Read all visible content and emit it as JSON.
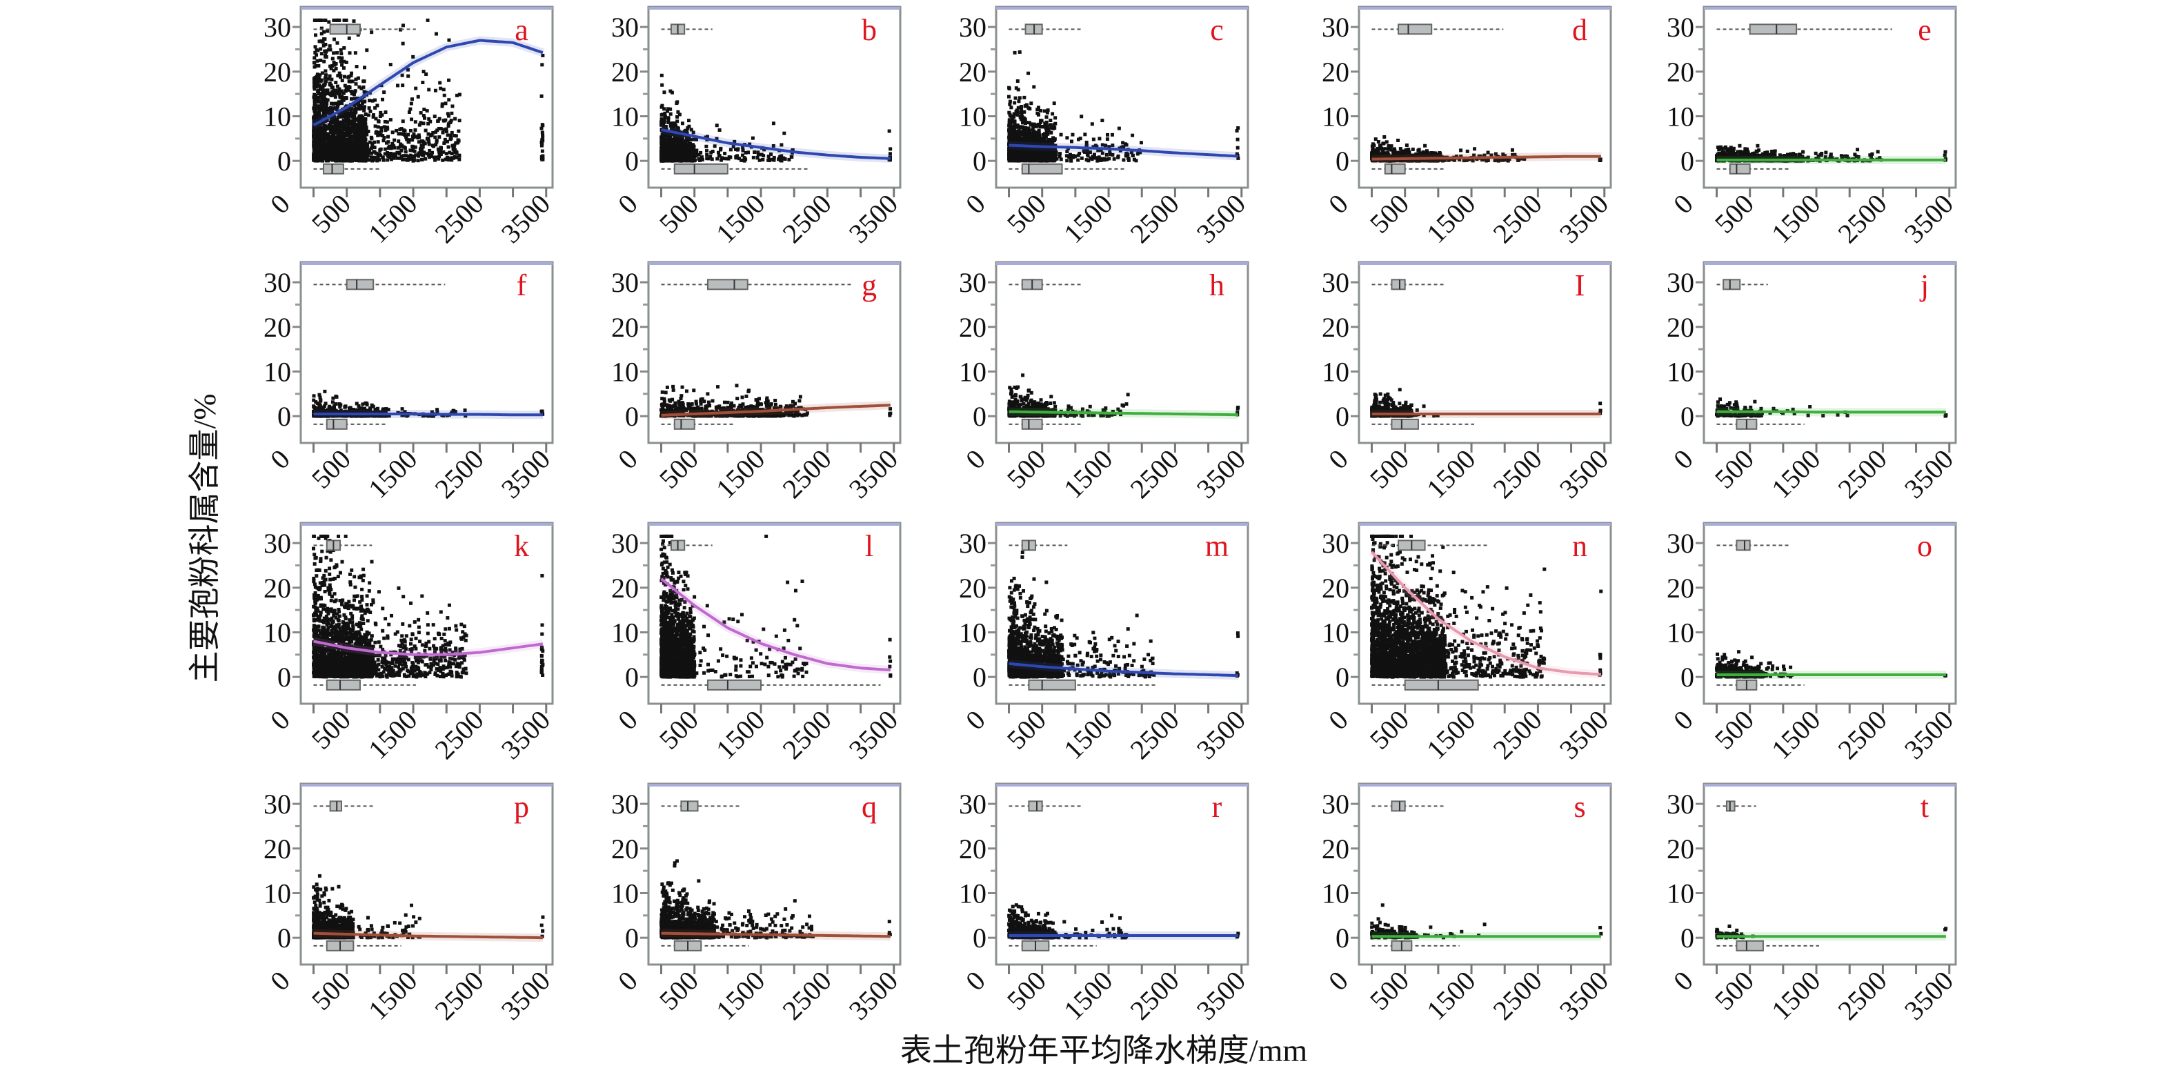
{
  "chart_data": {
    "type": "scatter",
    "xlabel": "表土孢粉年平均降水梯度/mm",
    "ylabel": "主要孢粉科属含量/%",
    "xlim": [
      0,
      3500
    ],
    "ylim": [
      0,
      30
    ],
    "x_ticks": [
      0,
      500,
      1000,
      1500,
      2000,
      2500,
      3000,
      3500
    ],
    "x_tick_labels": [
      "0",
      "500",
      "1500",
      "2500",
      "3500"
    ],
    "x_tick_label_values": [
      0,
      500,
      1500,
      2500,
      3500
    ],
    "y_tick_labels": [
      "0",
      "10",
      "20",
      "30"
    ],
    "y_tick_values": [
      0,
      10,
      20,
      30
    ],
    "y_minor_ticks": [
      5,
      15,
      25
    ],
    "grid": false,
    "label_color": "#e0141e",
    "fit_x": [
      0,
      500,
      1000,
      1500,
      2000,
      2500,
      3000,
      3500
    ],
    "panels": [
      {
        "label": "a",
        "fit_color": "#2f47b0",
        "fit_y": [
          8,
          12,
          17,
          22,
          25.5,
          27,
          26.5,
          24
        ],
        "scatter": {
          "n": 1600,
          "xmax": 800,
          "ymean": 9,
          "tail_n": 500,
          "tail_xmax": 2200,
          "edge_n": 25
        },
        "box_top": [
          250,
          500,
          700
        ],
        "box_bottom": [
          150,
          280,
          450
        ]
      },
      {
        "label": "b",
        "fit_color": "#2f47b0",
        "fit_y": [
          7,
          5.5,
          4,
          3,
          2,
          1.3,
          0.8,
          0.5
        ],
        "scatter": {
          "n": 1000,
          "xmax": 500,
          "ymean": 3,
          "tail_n": 120,
          "tail_xmax": 2000,
          "edge_n": 8
        },
        "box_top": [
          150,
          250,
          350
        ],
        "box_bottom": [
          200,
          500,
          1000
        ]
      },
      {
        "label": "c",
        "fit_color": "#2f47b0",
        "fit_y": [
          3.5,
          3.2,
          3,
          2.7,
          2.3,
          1.8,
          1.4,
          1
        ],
        "scatter": {
          "n": 1300,
          "xmax": 700,
          "ymean": 4,
          "tail_n": 150,
          "tail_xmax": 2000,
          "edge_n": 8
        },
        "box_top": [
          250,
          380,
          500
        ],
        "box_bottom": [
          200,
          300,
          800
        ]
      },
      {
        "label": "d",
        "fit_color": "#a0503a",
        "fit_y": [
          0.4,
          0.5,
          0.6,
          0.7,
          0.8,
          0.9,
          1,
          1
        ],
        "scatter": {
          "n": 500,
          "xmax": 1000,
          "ymean": 1.2,
          "tail_n": 120,
          "tail_xmax": 2300,
          "edge_n": 5
        },
        "box_top": [
          400,
          550,
          900
        ],
        "box_bottom": [
          200,
          300,
          500
        ]
      },
      {
        "label": "e",
        "fit_color": "#3fae3f",
        "fit_y": [
          0.2,
          0.2,
          0.2,
          0.2,
          0.2,
          0.2,
          0.2,
          0.2
        ],
        "scatter": {
          "n": 500,
          "xmax": 1300,
          "ymean": 0.9,
          "tail_n": 100,
          "tail_xmax": 2500,
          "edge_n": 5
        },
        "box_top": [
          500,
          900,
          1200
        ],
        "box_bottom": [
          200,
          300,
          500
        ]
      },
      {
        "label": "f",
        "fit_color": "#2f47b0",
        "fit_y": [
          0.5,
          0.5,
          0.5,
          0.5,
          0.4,
          0.4,
          0.3,
          0.3
        ],
        "scatter": {
          "n": 450,
          "xmax": 1100,
          "ymean": 1,
          "tail_n": 60,
          "tail_xmax": 2300,
          "edge_n": 4
        },
        "box_top": [
          500,
          650,
          900
        ],
        "box_bottom": [
          200,
          300,
          500
        ]
      },
      {
        "label": "g",
        "fit_color": "#a0503a",
        "fit_y": [
          0.2,
          0.5,
          0.8,
          1.1,
          1.5,
          1.9,
          2.2,
          2.5
        ],
        "scatter": {
          "n": 500,
          "xmax": 1800,
          "ymean": 1.5,
          "tail_n": 150,
          "tail_xmax": 2200,
          "edge_n": 4
        },
        "box_top": [
          700,
          1100,
          1300
        ],
        "box_bottom": [
          200,
          300,
          500
        ]
      },
      {
        "label": "h",
        "fit_color": "#3fae3f",
        "fit_y": [
          1,
          0.9,
          0.8,
          0.7,
          0.6,
          0.5,
          0.4,
          0.3
        ],
        "scatter": {
          "n": 450,
          "xmax": 700,
          "ymean": 1.6,
          "tail_n": 80,
          "tail_xmax": 1800,
          "edge_n": 4
        },
        "box_top": [
          200,
          350,
          500
        ],
        "box_bottom": [
          200,
          300,
          500
        ]
      },
      {
        "label": "I",
        "fit_color": "#a0503a",
        "fit_y": [
          0.5,
          0.5,
          0.5,
          0.5,
          0.5,
          0.5,
          0.5,
          0.5
        ],
        "scatter": {
          "n": 400,
          "xmax": 600,
          "ymean": 1.4,
          "tail_n": 20,
          "tail_xmax": 1000,
          "edge_n": 3
        },
        "box_top": [
          300,
          420,
          500
        ],
        "box_bottom": [
          300,
          450,
          700
        ]
      },
      {
        "label": "j",
        "fit_color": "#3fae3f",
        "fit_y": [
          1,
          1,
          1,
          0.9,
          0.9,
          0.9,
          0.9,
          0.9
        ],
        "scatter": {
          "n": 120,
          "xmax": 700,
          "ymean": 1.2,
          "tail_n": 20,
          "tail_xmax": 2000,
          "edge_n": 3
        },
        "box_top": [
          100,
          200,
          350
        ],
        "box_bottom": [
          300,
          450,
          600
        ]
      },
      {
        "label": "k",
        "fit_color": "#c06ad0",
        "fit_y": [
          8,
          6.5,
          5.5,
          5,
          5,
          5.5,
          6.5,
          7.5
        ],
        "scatter": {
          "n": 1500,
          "xmax": 900,
          "ymean": 8,
          "tail_n": 500,
          "tail_xmax": 2300,
          "edge_n": 20
        },
        "box_top": [
          200,
          300,
          400
        ],
        "box_bottom": [
          200,
          400,
          700
        ]
      },
      {
        "label": "l",
        "fit_color": "#c06ad0",
        "fit_y": [
          22,
          16,
          11,
          7.5,
          5,
          3,
          2,
          1.5
        ],
        "scatter": {
          "n": 1500,
          "xmax": 500,
          "ymean": 8,
          "tail_n": 120,
          "tail_xmax": 2200,
          "edge_n": 6
        },
        "box_top": [
          150,
          250,
          350
        ],
        "box_bottom": [
          700,
          1000,
          1500
        ]
      },
      {
        "label": "m",
        "fit_color": "#2f47b0",
        "fit_y": [
          3,
          2.3,
          1.8,
          1.3,
          1,
          0.7,
          0.5,
          0.3
        ],
        "scatter": {
          "n": 1400,
          "xmax": 800,
          "ymean": 5,
          "tail_n": 200,
          "tail_xmax": 2200,
          "edge_n": 5
        },
        "box_top": [
          200,
          300,
          400
        ],
        "box_bottom": [
          300,
          500,
          1000
        ]
      },
      {
        "label": "n",
        "fit_color": "#e89ab0",
        "fit_y": [
          28,
          20,
          13,
          8,
          4.5,
          2,
          1,
          0.5
        ],
        "scatter": {
          "n": 2200,
          "xmax": 1100,
          "ymean": 9,
          "tail_n": 400,
          "tail_xmax": 2600,
          "edge_n": 8
        },
        "box_top": [
          400,
          600,
          800
        ],
        "box_bottom": [
          500,
          1000,
          1600
        ]
      },
      {
        "label": "o",
        "fit_color": "#3fae3f",
        "fit_y": [
          0.5,
          0.5,
          0.5,
          0.5,
          0.5,
          0.5,
          0.5,
          0.5
        ],
        "scatter": {
          "n": 300,
          "xmax": 700,
          "ymean": 1.5,
          "tail_n": 40,
          "tail_xmax": 1200,
          "edge_n": 3
        },
        "box_top": [
          300,
          420,
          500
        ],
        "box_bottom": [
          300,
          450,
          600
        ]
      },
      {
        "label": "p",
        "fit_color": "#a0503a",
        "fit_y": [
          1,
          0.8,
          0.6,
          0.4,
          0.3,
          0.2,
          0.1,
          0
        ],
        "scatter": {
          "n": 900,
          "xmax": 600,
          "ymean": 2.5,
          "tail_n": 80,
          "tail_xmax": 1600,
          "edge_n": 4
        },
        "box_top": [
          250,
          350,
          420
        ],
        "box_bottom": [
          200,
          400,
          600
        ]
      },
      {
        "label": "q",
        "fit_color": "#a0503a",
        "fit_y": [
          1,
          0.9,
          0.8,
          0.7,
          0.6,
          0.5,
          0.4,
          0.3
        ],
        "scatter": {
          "n": 1100,
          "xmax": 800,
          "ymean": 3,
          "tail_n": 200,
          "tail_xmax": 2300,
          "edge_n": 4
        },
        "box_top": [
          300,
          400,
          550
        ],
        "box_bottom": [
          200,
          400,
          600
        ]
      },
      {
        "label": "r",
        "fit_color": "#2f47b0",
        "fit_y": [
          0.5,
          0.5,
          0.5,
          0.5,
          0.5,
          0.5,
          0.5,
          0.5
        ],
        "scatter": {
          "n": 500,
          "xmax": 700,
          "ymean": 1.8,
          "tail_n": 60,
          "tail_xmax": 1800,
          "edge_n": 3
        },
        "box_top": [
          300,
          420,
          500
        ],
        "box_bottom": [
          200,
          400,
          600
        ]
      },
      {
        "label": "s",
        "fit_color": "#3fae3f",
        "fit_y": [
          0.3,
          0.3,
          0.3,
          0.3,
          0.3,
          0.3,
          0.3,
          0.3
        ],
        "scatter": {
          "n": 150,
          "xmax": 700,
          "ymean": 1.2,
          "tail_n": 15,
          "tail_xmax": 1700,
          "edge_n": 2
        },
        "box_top": [
          300,
          420,
          500
        ],
        "box_bottom": [
          300,
          450,
          600
        ]
      },
      {
        "label": "t",
        "fit_color": "#3fae3f",
        "fit_y": [
          0.3,
          0.3,
          0.3,
          0.3,
          0.3,
          0.3,
          0.3,
          0.3
        ],
        "scatter": {
          "n": 60,
          "xmax": 400,
          "ymean": 0.8,
          "tail_n": 2,
          "tail_xmax": 800,
          "edge_n": 2
        },
        "box_top": [
          150,
          200,
          270
        ],
        "box_bottom": [
          300,
          450,
          700
        ]
      }
    ]
  }
}
